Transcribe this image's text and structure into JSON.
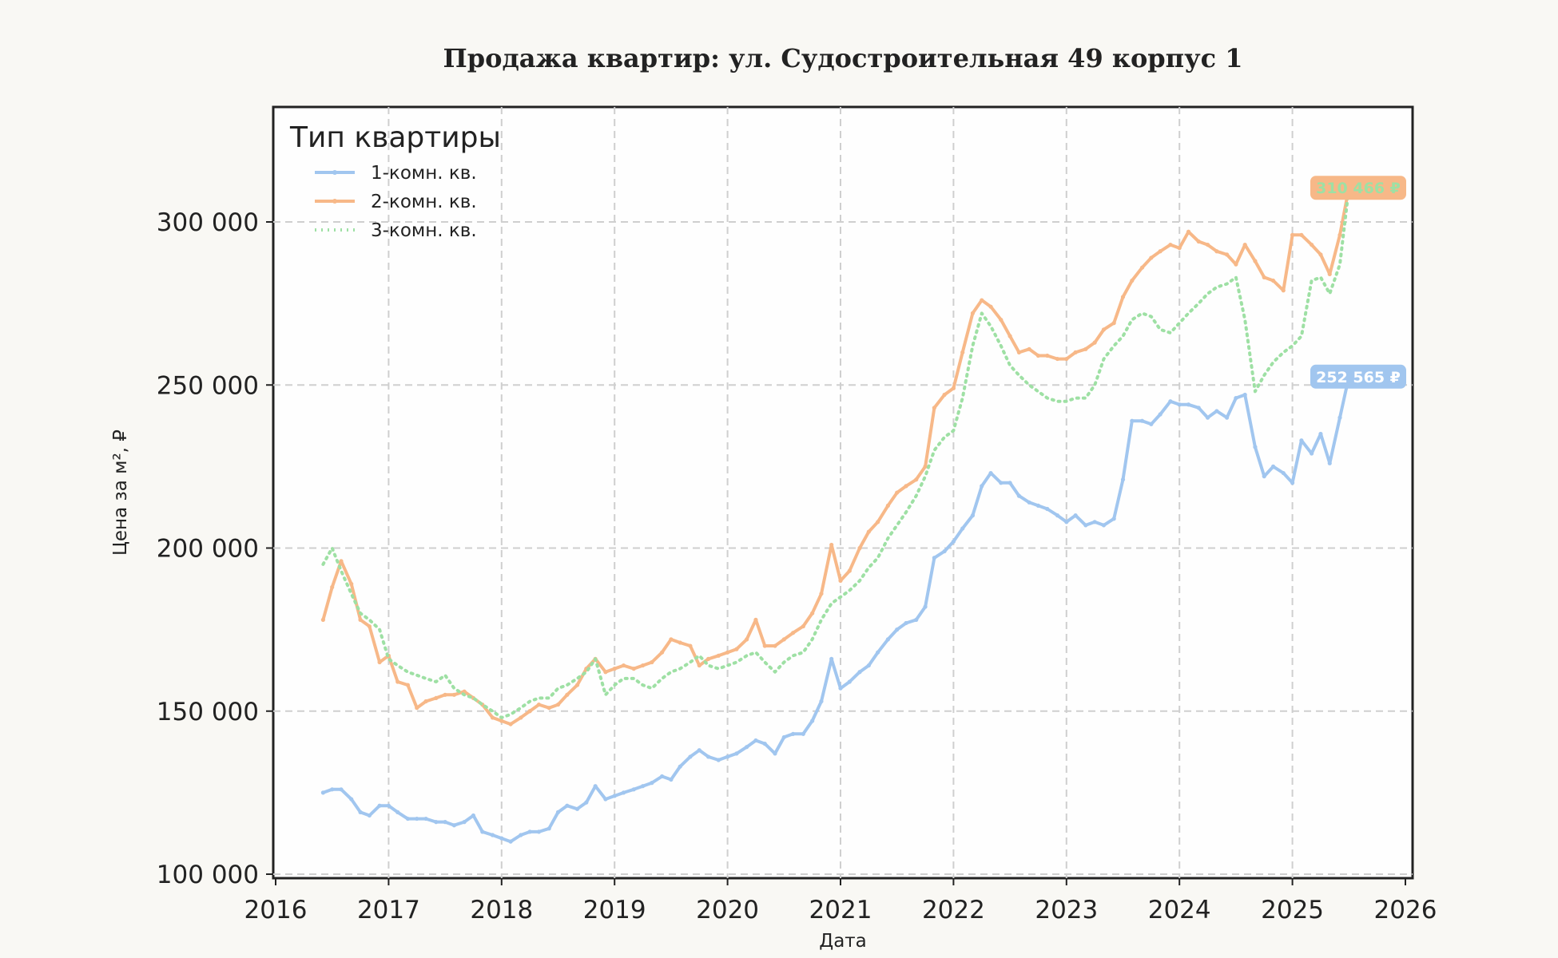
{
  "chart_data": {
    "type": "line",
    "title": "Продажа квартир: ул. Судостроительная 49 корпус 1",
    "xlabel": "Дата",
    "ylabel": "Цена за м², ₽",
    "xlim": [
      2016,
      2026
    ],
    "ylim": [
      98000,
      336000
    ],
    "x_ticks": [
      "2016",
      "2017",
      "2018",
      "2019",
      "2020",
      "2021",
      "2022",
      "2023",
      "2024",
      "2025",
      "2026"
    ],
    "y_ticks": [
      {
        "value": 100000,
        "label": "100 000"
      },
      {
        "value": 150000,
        "label": "150 000"
      },
      {
        "value": 200000,
        "label": "200 000"
      },
      {
        "value": 250000,
        "label": "250 000"
      },
      {
        "value": 300000,
        "label": "300 000"
      }
    ],
    "grid": true,
    "legend": {
      "title": "Тип квартиры",
      "position": "top-left"
    },
    "series": [
      {
        "name": "1-комн. кв.",
        "color": "#a1c6ef",
        "style": "solid",
        "x": [
          2016.42,
          2016.5,
          2016.58,
          2016.67,
          2016.75,
          2016.83,
          2016.92,
          2017.0,
          2017.08,
          2017.17,
          2017.25,
          2017.33,
          2017.42,
          2017.5,
          2017.58,
          2017.67,
          2017.75,
          2017.83,
          2017.92,
          2018.0,
          2018.08,
          2018.17,
          2018.25,
          2018.33,
          2018.42,
          2018.5,
          2018.58,
          2018.67,
          2018.75,
          2018.83,
          2018.92,
          2019.0,
          2019.08,
          2019.17,
          2019.25,
          2019.33,
          2019.42,
          2019.5,
          2019.58,
          2019.67,
          2019.75,
          2019.83,
          2019.92,
          2020.0,
          2020.08,
          2020.17,
          2020.25,
          2020.33,
          2020.42,
          2020.5,
          2020.58,
          2020.67,
          2020.75,
          2020.83,
          2020.92,
          2021.0,
          2021.08,
          2021.17,
          2021.25,
          2021.33,
          2021.42,
          2021.5,
          2021.58,
          2021.67,
          2021.75,
          2021.83,
          2021.92,
          2022.0,
          2022.08,
          2022.17,
          2022.25,
          2022.33,
          2022.42,
          2022.5,
          2022.58,
          2022.67,
          2022.75,
          2022.83,
          2022.92,
          2023.0,
          2023.08,
          2023.17,
          2023.25,
          2023.33,
          2023.42,
          2023.5,
          2023.58,
          2023.67,
          2023.75,
          2023.83,
          2023.92,
          2024.0,
          2024.08,
          2024.17,
          2024.25,
          2024.33,
          2024.42,
          2024.5,
          2024.58,
          2024.67,
          2024.75,
          2024.83,
          2024.92,
          2025.0,
          2025.08,
          2025.17,
          2025.25,
          2025.33,
          2025.42,
          2025.5
        ],
        "y": [
          125000,
          126000,
          126000,
          123000,
          119000,
          118000,
          121000,
          121000,
          119000,
          117000,
          117000,
          117000,
          116000,
          116000,
          115000,
          116000,
          118000,
          113000,
          112000,
          111000,
          110000,
          112000,
          113000,
          113000,
          114000,
          119000,
          121000,
          120000,
          122000,
          127000,
          123000,
          124000,
          125000,
          126000,
          127000,
          128000,
          130000,
          129000,
          133000,
          136000,
          138000,
          136000,
          135000,
          136000,
          137000,
          139000,
          141000,
          140000,
          137000,
          142000,
          143000,
          143000,
          147000,
          153000,
          166000,
          157000,
          159000,
          162000,
          164000,
          168000,
          172000,
          175000,
          177000,
          178000,
          182000,
          197000,
          199000,
          202000,
          206000,
          210000,
          219000,
          223000,
          220000,
          220000,
          216000,
          214000,
          213000,
          212000,
          210000,
          208000,
          210000,
          207000,
          208000,
          207000,
          209000,
          221000,
          239000,
          239000,
          238000,
          241000,
          245000,
          244000,
          244000,
          243000,
          240000,
          242000,
          240000,
          246000,
          247000,
          231000,
          222000,
          225000,
          223000,
          220000,
          233000,
          229000,
          235000,
          226000,
          240000,
          252565
        ]
      },
      {
        "name": "2-комн. кв.",
        "color": "#f7b888",
        "style": "solid",
        "x": [
          2016.42,
          2016.5,
          2016.58,
          2016.67,
          2016.75,
          2016.83,
          2016.92,
          2017.0,
          2017.08,
          2017.17,
          2017.25,
          2017.33,
          2017.42,
          2017.5,
          2017.58,
          2017.67,
          2017.75,
          2017.83,
          2017.92,
          2018.0,
          2018.08,
          2018.17,
          2018.25,
          2018.33,
          2018.42,
          2018.5,
          2018.58,
          2018.67,
          2018.75,
          2018.83,
          2018.92,
          2019.0,
          2019.08,
          2019.17,
          2019.25,
          2019.33,
          2019.42,
          2019.5,
          2019.58,
          2019.67,
          2019.75,
          2019.83,
          2019.92,
          2020.0,
          2020.08,
          2020.17,
          2020.25,
          2020.33,
          2020.42,
          2020.5,
          2020.58,
          2020.67,
          2020.75,
          2020.83,
          2020.92,
          2021.0,
          2021.08,
          2021.17,
          2021.25,
          2021.33,
          2021.42,
          2021.5,
          2021.58,
          2021.67,
          2021.75,
          2021.83,
          2021.92,
          2022.0,
          2022.08,
          2022.17,
          2022.25,
          2022.33,
          2022.42,
          2022.5,
          2022.58,
          2022.67,
          2022.75,
          2022.83,
          2022.92,
          2023.0,
          2023.08,
          2023.17,
          2023.25,
          2023.33,
          2023.42,
          2023.5,
          2023.58,
          2023.67,
          2023.75,
          2023.83,
          2023.92,
          2024.0,
          2024.08,
          2024.17,
          2024.25,
          2024.33,
          2024.42,
          2024.5,
          2024.58,
          2024.67,
          2024.75,
          2024.83,
          2024.92,
          2025.0,
          2025.08,
          2025.17,
          2025.25,
          2025.33,
          2025.42,
          2025.5
        ],
        "y": [
          178000,
          188000,
          196000,
          189000,
          178000,
          176000,
          165000,
          167000,
          159000,
          158000,
          151000,
          153000,
          154000,
          155000,
          155000,
          156000,
          154000,
          152000,
          148000,
          147000,
          146000,
          148000,
          150000,
          152000,
          151000,
          152000,
          155000,
          158000,
          163000,
          166000,
          162000,
          163000,
          164000,
          163000,
          164000,
          165000,
          168000,
          172000,
          171000,
          170000,
          164000,
          166000,
          167000,
          168000,
          169000,
          172000,
          178000,
          170000,
          170000,
          172000,
          174000,
          176000,
          180000,
          186000,
          201000,
          190000,
          193000,
          200000,
          205000,
          208000,
          213000,
          217000,
          219000,
          221000,
          225000,
          243000,
          247000,
          249000,
          260000,
          272000,
          276000,
          274000,
          270000,
          265000,
          260000,
          261000,
          259000,
          259000,
          258000,
          258000,
          260000,
          261000,
          263000,
          267000,
          269000,
          277000,
          282000,
          286000,
          289000,
          291000,
          293000,
          292000,
          297000,
          294000,
          293000,
          291000,
          290000,
          287000,
          293000,
          288000,
          283000,
          282000,
          279000,
          296000,
          296000,
          293000,
          290000,
          284000,
          296000,
          310466
        ]
      },
      {
        "name": "3-комн. кв.",
        "color": "#9ee0a4",
        "style": "dotted",
        "x": [
          2016.42,
          2016.5,
          2016.58,
          2016.67,
          2016.75,
          2016.83,
          2016.92,
          2017.0,
          2017.08,
          2017.17,
          2017.25,
          2017.33,
          2017.42,
          2017.5,
          2017.58,
          2017.67,
          2017.75,
          2017.83,
          2017.92,
          2018.0,
          2018.08,
          2018.17,
          2018.25,
          2018.33,
          2018.42,
          2018.5,
          2018.58,
          2018.67,
          2018.75,
          2018.83,
          2018.92,
          2019.0,
          2019.08,
          2019.17,
          2019.25,
          2019.33,
          2019.42,
          2019.5,
          2019.58,
          2019.67,
          2019.75,
          2019.83,
          2019.92,
          2020.0,
          2020.08,
          2020.17,
          2020.25,
          2020.33,
          2020.42,
          2020.5,
          2020.58,
          2020.67,
          2020.75,
          2020.83,
          2020.92,
          2021.0,
          2021.08,
          2021.17,
          2021.25,
          2021.33,
          2021.42,
          2021.5,
          2021.58,
          2021.67,
          2021.75,
          2021.83,
          2021.92,
          2022.0,
          2022.08,
          2022.17,
          2022.25,
          2022.33,
          2022.42,
          2022.5,
          2022.58,
          2022.67,
          2022.75,
          2022.83,
          2022.92,
          2023.0,
          2023.08,
          2023.17,
          2023.25,
          2023.33,
          2023.42,
          2023.5,
          2023.58,
          2023.67,
          2023.75,
          2023.83,
          2023.92,
          2024.0,
          2024.08,
          2024.17,
          2024.25,
          2024.33,
          2024.42,
          2024.5,
          2024.58,
          2024.67,
          2024.75,
          2024.83,
          2024.92,
          2025.0,
          2025.08,
          2025.17,
          2025.25,
          2025.33,
          2025.42,
          2025.5
        ],
        "y": [
          195000,
          200000,
          193000,
          186000,
          180000,
          178000,
          175000,
          166000,
          164000,
          162000,
          161000,
          160000,
          159000,
          161000,
          157000,
          155000,
          154000,
          152000,
          150000,
          148000,
          149000,
          151000,
          153000,
          154000,
          154000,
          157000,
          158000,
          160000,
          162000,
          166000,
          155000,
          158000,
          160000,
          160000,
          158000,
          157000,
          160000,
          162000,
          163000,
          165000,
          167000,
          164000,
          163000,
          164000,
          165000,
          167000,
          168000,
          165000,
          162000,
          165000,
          167000,
          168000,
          172000,
          178000,
          183000,
          185000,
          187000,
          190000,
          194000,
          197000,
          203000,
          207000,
          211000,
          216000,
          222000,
          230000,
          234000,
          236000,
          246000,
          262000,
          272000,
          268000,
          262000,
          256000,
          253000,
          250000,
          248000,
          246000,
          245000,
          245000,
          246000,
          246000,
          250000,
          258000,
          262000,
          265000,
          270000,
          272000,
          271000,
          267000,
          266000,
          269000,
          272000,
          275000,
          278000,
          280000,
          281000,
          283000,
          270000,
          248000,
          253000,
          257000,
          260000,
          262000,
          265000,
          282000,
          283000,
          278000,
          287000,
          310466
        ]
      }
    ],
    "end_labels": [
      {
        "series": "2-комн. кв.",
        "text": "310 466 ₽",
        "value": 310466,
        "color": "#f7b888",
        "text_color": "#9ee0a4"
      },
      {
        "series": "1-комн. кв.",
        "text": "252 565 ₽",
        "value": 252565,
        "color": "#a1c6ef",
        "text_color": "#ffffff"
      }
    ]
  }
}
